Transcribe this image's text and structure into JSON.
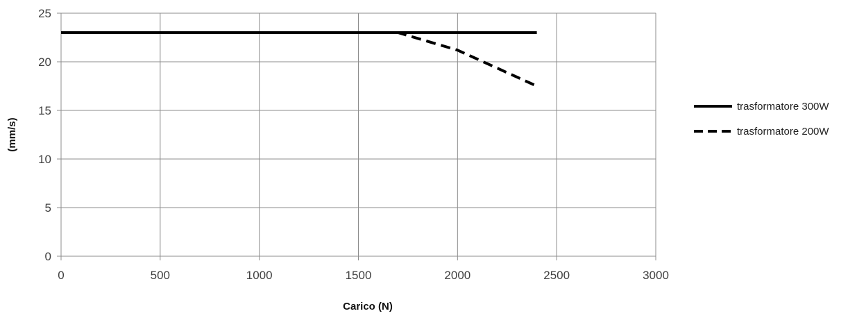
{
  "chart_data": {
    "type": "line",
    "title": "",
    "xlabel": "Carico (N)",
    "ylabel": "(mm/s)",
    "xlim": [
      0,
      3000
    ],
    "ylim": [
      0,
      25
    ],
    "xticks": [
      0,
      500,
      1000,
      1500,
      2000,
      2500,
      3000
    ],
    "yticks": [
      0,
      5,
      10,
      15,
      20,
      25
    ],
    "xtick_labels": [
      "0",
      "500",
      "1000",
      "1500",
      "2000",
      "2500",
      "3000"
    ],
    "ytick_labels": [
      "0",
      "5",
      "10",
      "15",
      "20",
      "25"
    ],
    "grid": true,
    "legend_position": "right",
    "series": [
      {
        "name": "trasformatore 300W",
        "style": "solid",
        "color": "#000000",
        "x": [
          0,
          500,
          1000,
          1500,
          1700,
          2000,
          2400
        ],
        "y": [
          23,
          23,
          23,
          23,
          23,
          23,
          23
        ]
      },
      {
        "name": "trasformatore 200W",
        "style": "dashed",
        "color": "#000000",
        "x": [
          0,
          500,
          1000,
          1500,
          1700,
          2000,
          2400
        ],
        "y": [
          23,
          23,
          23,
          23,
          23,
          21.2,
          17.5
        ]
      }
    ]
  }
}
